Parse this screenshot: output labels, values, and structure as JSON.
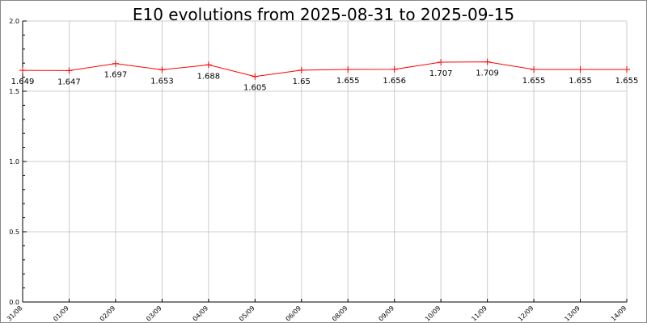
{
  "chart_data": {
    "type": "line",
    "title": "E10 evolutions from 2025-08-31 to 2025-09-15",
    "xlabel": "",
    "ylabel": "",
    "categories": [
      "31/08",
      "01/09",
      "02/09",
      "03/09",
      "04/09",
      "05/09",
      "06/09",
      "08/09",
      "09/09",
      "10/09",
      "11/09",
      "12/09",
      "13/09",
      "14/09"
    ],
    "series": [
      {
        "values": [
          1.649,
          1.647,
          1.697,
          1.653,
          1.688,
          1.605,
          1.65,
          1.655,
          1.656,
          1.707,
          1.709,
          1.655,
          1.655,
          1.655
        ],
        "labels": [
          "1.649",
          "1.647",
          "1.697",
          "1.653",
          "1.688",
          "1.605",
          "1.65",
          "1.655",
          "1.656",
          "1.707",
          "1.709",
          "1.655",
          "1.655",
          "1.655"
        ],
        "color": "#ff0000"
      }
    ],
    "ylim": [
      0,
      2.0
    ],
    "yticks": [
      "0.0",
      "0.5",
      "1.0",
      "1.5",
      "2.0"
    ],
    "grid": true,
    "legend": "none"
  }
}
